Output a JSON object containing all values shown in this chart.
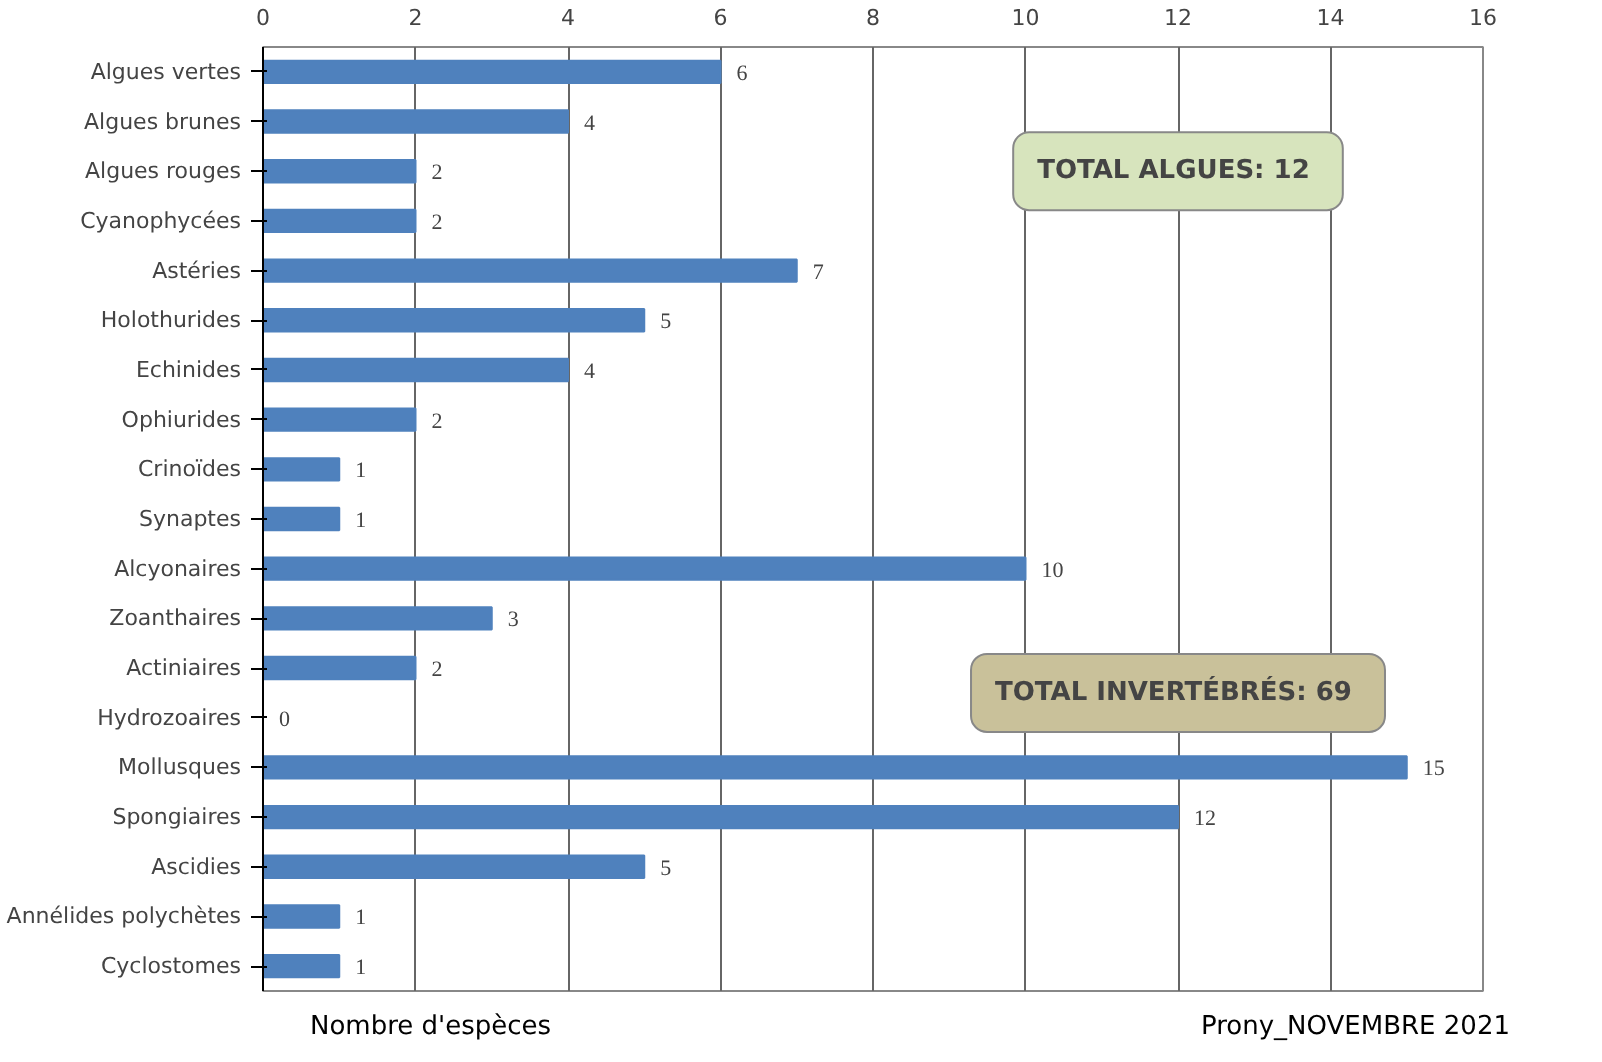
{
  "chart_data": {
    "type": "bar",
    "orientation": "horizontal",
    "xlabel": "Nombre d'espèces",
    "categories": [
      "Algues vertes",
      "Algues brunes",
      "Algues rouges",
      "Cyanophycées",
      "Astéries",
      "Holothurides",
      "Echinides",
      "Ophiurides",
      "Crinoïdes",
      "Synaptes",
      "Alcyonaires",
      "Zoanthaires",
      "Actiniaires",
      "Hydrozoaires",
      "Mollusques",
      "Spongiaires",
      "Ascidies",
      "Annélides polychètes",
      "Cyclostomes"
    ],
    "values": [
      6,
      4,
      2,
      2,
      7,
      5,
      4,
      2,
      1,
      1,
      10,
      3,
      2,
      0,
      15,
      12,
      5,
      1,
      1
    ],
    "color": "#4f81bd",
    "xlim": [
      0,
      16
    ],
    "xticks": [
      0,
      2,
      4,
      6,
      8,
      10,
      12,
      14,
      16
    ],
    "grid": "x",
    "data_labels": true,
    "annotations": [
      "TOTAL ALGUES:  12",
      "TOTAL INVERTÉBRÉS:  69",
      "Prony_NOVEMBRE 2021"
    ]
  }
}
